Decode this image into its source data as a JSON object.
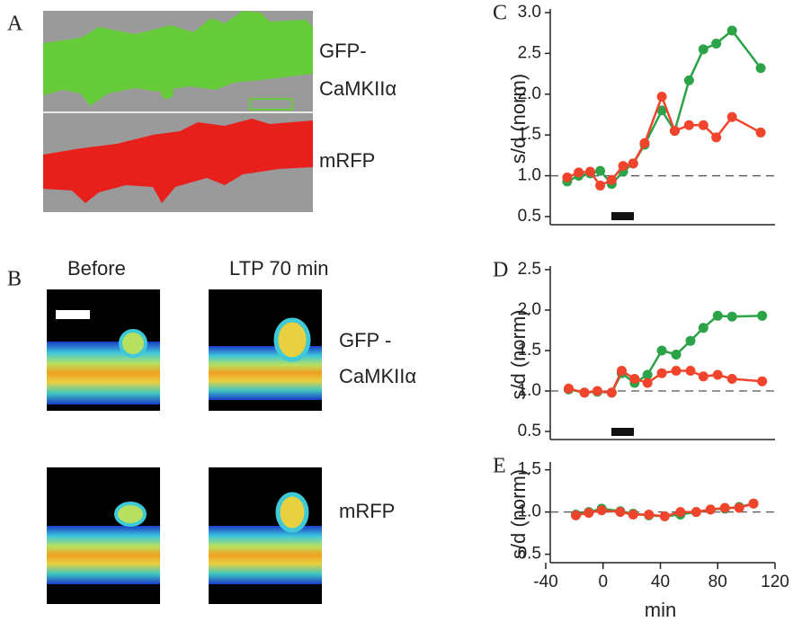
{
  "panels": {
    "A": {
      "label": "A",
      "channel_labels": [
        "GFP-",
        "CaMKIIα",
        "mRFP"
      ]
    },
    "B": {
      "label": "B",
      "column_labels": [
        "Before",
        "LTP 70 min"
      ],
      "row_labels": [
        "GFP -",
        "CaMKIIα",
        "mRFP"
      ]
    }
  },
  "chart_data": [
    {
      "type": "line",
      "label": "C",
      "y_label": "s/d (norm)",
      "x": [
        -25,
        -17,
        -9,
        -2,
        6,
        14,
        21,
        29,
        41,
        50,
        60,
        70,
        79,
        90,
        110
      ],
      "series": [
        {
          "color": "#2ca348",
          "values": [
            0.93,
            1.0,
            1.03,
            1.06,
            0.9,
            1.05,
            1.15,
            1.38,
            1.8,
            1.55,
            2.17,
            2.55,
            2.62,
            2.78,
            2.32
          ]
        },
        {
          "color": "#f0452c",
          "values": [
            0.98,
            1.04,
            1.05,
            0.88,
            0.95,
            1.12,
            1.15,
            1.4,
            1.97,
            1.55,
            1.62,
            1.62,
            1.47,
            1.72,
            1.53
          ]
        }
      ],
      "xlim": [
        -40,
        120
      ],
      "ylim": [
        0.4,
        3.0
      ],
      "yticks": [
        0.5,
        {
          "value": 1,
          "label": "1.0"
        },
        1.5,
        {
          "value": 2,
          "label": "2.0"
        },
        2.5,
        {
          "value": 3,
          "label": "3.0"
        }
      ],
      "reference_y": 1
    },
    {
      "type": "line",
      "label": "D",
      "y_label": "s/d (norm)",
      "x": [
        -24,
        -13,
        -4,
        6,
        13,
        22,
        31,
        41,
        51,
        61,
        70,
        80,
        90,
        111
      ],
      "series": [
        {
          "color": "#2ca348",
          "values": [
            1.02,
            0.98,
            0.99,
            0.98,
            1.22,
            1.1,
            1.2,
            1.5,
            1.45,
            1.62,
            1.78,
            1.93,
            1.92,
            1.93
          ]
        },
        {
          "color": "#f0452c",
          "values": [
            1.03,
            0.98,
            1.0,
            0.98,
            1.25,
            1.15,
            1.1,
            1.22,
            1.25,
            1.25,
            1.18,
            1.2,
            1.15,
            1.12
          ]
        }
      ],
      "xlim": [
        -40,
        120
      ],
      "ylim": [
        0.4,
        2.5
      ],
      "yticks": [
        0.5,
        {
          "value": 1,
          "label": "1.0"
        },
        1.5,
        {
          "value": 2,
          "label": "2.0"
        },
        2.5
      ],
      "reference_y": 1
    },
    {
      "type": "line",
      "label": "E",
      "y_label": "s/d (norm)",
      "x_label": "min",
      "x": [
        -19,
        -10,
        -1,
        12,
        21,
        32,
        43,
        54,
        65,
        75,
        85,
        95,
        105
      ],
      "series": [
        {
          "color": "#2ca348",
          "values": [
            0.97,
            1.0,
            1.04,
            1.01,
            0.98,
            0.96,
            0.95,
            0.97,
            1.0,
            1.03,
            1.04,
            1.06,
            1.1
          ]
        },
        {
          "color": "#f0452c",
          "values": [
            0.96,
            0.99,
            1.02,
            1.0,
            0.97,
            0.97,
            0.95,
            1.0,
            1.0,
            1.03,
            1.05,
            1.05,
            1.1
          ]
        }
      ],
      "xlim": [
        -40,
        120
      ],
      "ylim": [
        0.4,
        1.55
      ],
      "xticks": [
        -40,
        0,
        40,
        80,
        120
      ],
      "yticks": [
        0.5,
        {
          "value": 1,
          "label": "1.0"
        },
        1.5
      ],
      "reference_y": 1
    }
  ]
}
